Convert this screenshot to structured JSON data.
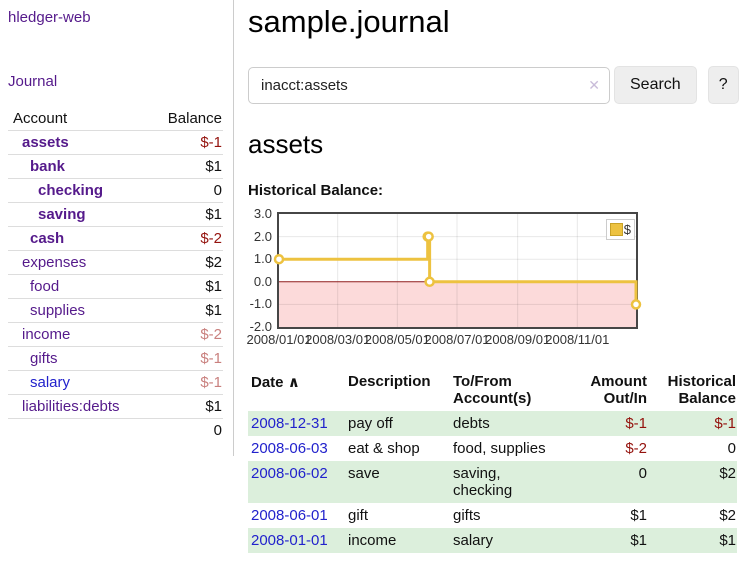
{
  "app": {
    "title": "hledger-web"
  },
  "sidebar": {
    "journal_link": "Journal",
    "headers": {
      "account": "Account",
      "balance": "Balance"
    },
    "accounts": [
      {
        "name": "assets",
        "balance": "$-1",
        "level": 1,
        "emphasized": true,
        "balance_tone": "neg-strong"
      },
      {
        "name": "bank",
        "balance": "$1",
        "level": 2,
        "emphasized": true,
        "balance_tone": "pos"
      },
      {
        "name": "checking",
        "balance": "0",
        "level": 3,
        "emphasized": true,
        "balance_tone": "pos"
      },
      {
        "name": "saving",
        "balance": "$1",
        "level": 3,
        "emphasized": true,
        "balance_tone": "pos"
      },
      {
        "name": "cash",
        "balance": "$-2",
        "level": 2,
        "emphasized": true,
        "balance_tone": "neg-strong"
      },
      {
        "name": "expenses",
        "balance": "$2",
        "level": 1,
        "emphasized": false,
        "balance_tone": "pos"
      },
      {
        "name": "food",
        "balance": "$1",
        "level": 2,
        "emphasized": false,
        "balance_tone": "pos"
      },
      {
        "name": "supplies",
        "balance": "$1",
        "level": 2,
        "emphasized": false,
        "balance_tone": "pos"
      },
      {
        "name": "income",
        "balance": "$-2",
        "level": 1,
        "emphasized": false,
        "balance_tone": "neg-soft"
      },
      {
        "name": "gifts",
        "balance": "$-1",
        "level": 2,
        "emphasized": false,
        "balance_tone": "neg-soft"
      },
      {
        "name": "salary",
        "balance": "$-1",
        "level": 2,
        "emphasized": false,
        "balance_tone": "neg-soft"
      },
      {
        "name": "liabilities:debts",
        "balance": "$1",
        "level": 1,
        "emphasized": false,
        "balance_tone": "pos"
      }
    ],
    "total": "0"
  },
  "main": {
    "title": "sample.journal",
    "search": {
      "value": "inacct:assets",
      "clear_icon": "✕",
      "button_label": "Search",
      "help_label": "?"
    },
    "account_heading": "assets",
    "chart_label": "Historical Balance:"
  },
  "chart_data": {
    "type": "line",
    "step": true,
    "title": "Historical Balance",
    "series": [
      {
        "name": "$",
        "color": "#EDC240",
        "points": [
          [
            "2008-01-01",
            1
          ],
          [
            "2008-06-01",
            2
          ],
          [
            "2008-06-02",
            2
          ],
          [
            "2008-06-03",
            0
          ],
          [
            "2008-12-31",
            -1
          ]
        ]
      }
    ],
    "ylim": [
      -2.0,
      3.0
    ],
    "yticks": [
      "3.0",
      "2.0",
      "1.0",
      "0.0",
      "-1.0",
      "-2.0"
    ],
    "xticks": [
      "2008/01/01",
      "2008/03/01",
      "2008/05/01",
      "2008/07/01",
      "2008/09/01",
      "2008/11/01"
    ],
    "x_range": [
      "2008-01-01",
      "2008-12-31"
    ],
    "grid": true,
    "legend_position": "top-right",
    "negative_region_color": "#fcdada",
    "zero_line_color": "#8f1d1d",
    "marker": "open-circle"
  },
  "register": {
    "headers": {
      "date": "Date",
      "sort_indicator": "∧",
      "description": "Description",
      "accounts": "To/From Account(s)",
      "amount": "Amount Out/In",
      "balance": "Historical Balance"
    },
    "rows": [
      {
        "date": "2008-12-31",
        "description": "pay off",
        "accounts": "debts",
        "amount": "$-1",
        "balance": "$-1",
        "amount_tone": "neg",
        "balance_tone": "neg"
      },
      {
        "date": "2008-06-03",
        "description": "eat & shop",
        "accounts": "food, supplies",
        "amount": "$-2",
        "balance": "0",
        "amount_tone": "neg",
        "balance_tone": "pos"
      },
      {
        "date": "2008-06-02",
        "description": "save",
        "accounts": "saving, checking",
        "amount": "0",
        "balance": "$2",
        "amount_tone": "pos",
        "balance_tone": "pos"
      },
      {
        "date": "2008-06-01",
        "description": "gift",
        "accounts": "gifts",
        "amount": "$1",
        "balance": "$2",
        "amount_tone": "pos",
        "balance_tone": "pos"
      },
      {
        "date": "2008-01-01",
        "description": "income",
        "accounts": "salary",
        "amount": "$1",
        "balance": "$1",
        "amount_tone": "pos",
        "balance_tone": "pos"
      }
    ]
  }
}
